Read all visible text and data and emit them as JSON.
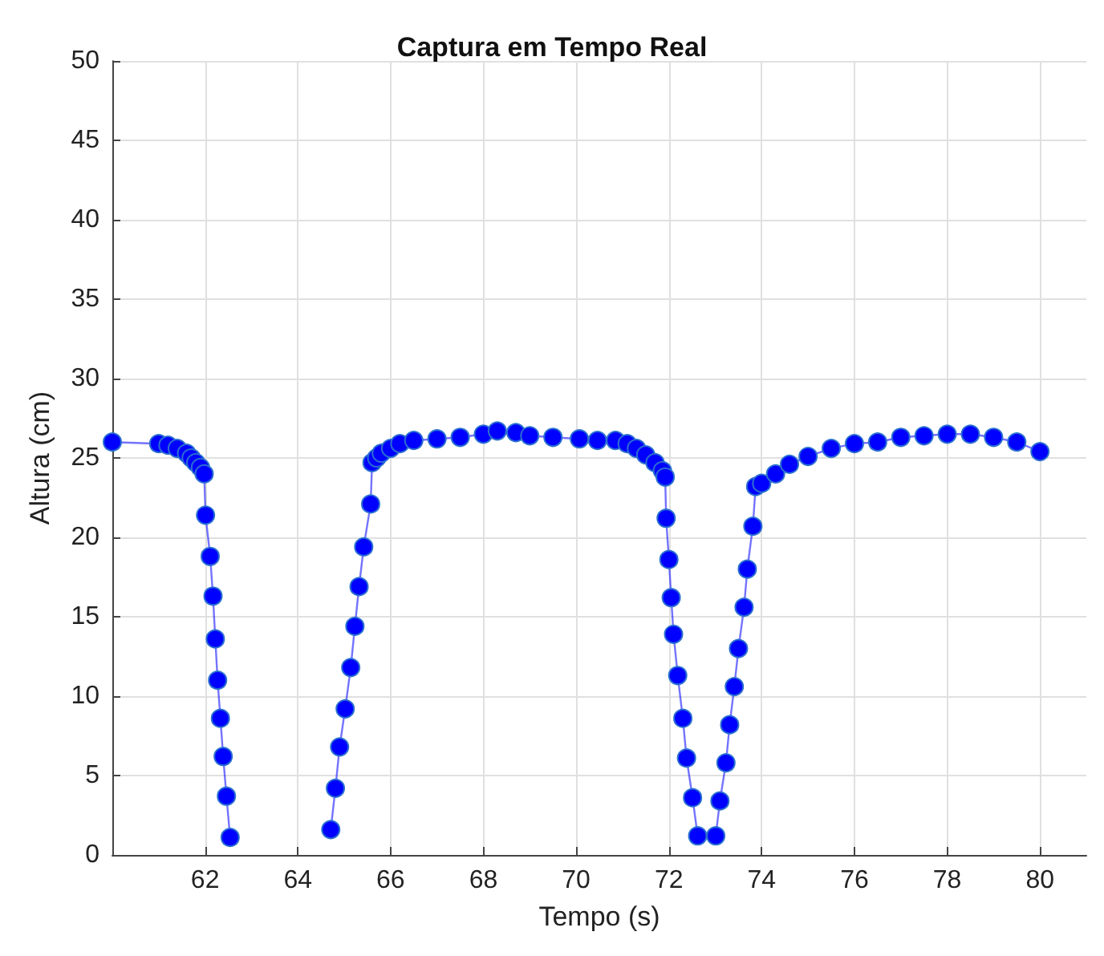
{
  "chart_data": {
    "type": "line",
    "title": "Captura em Tempo Real",
    "xlabel": "Tempo (s)",
    "ylabel": "Altura (cm)",
    "xlim": [
      60,
      81
    ],
    "xticks": [
      62,
      64,
      66,
      68,
      70,
      72,
      74,
      76,
      78,
      80
    ],
    "ylim": [
      0,
      50
    ],
    "yticks": [
      0,
      5,
      10,
      15,
      20,
      25,
      30,
      35,
      40,
      45,
      50
    ],
    "grid": true,
    "marker": "circle",
    "line_style": "solid",
    "x": [
      60,
      61.0,
      61.2,
      61.4,
      61.6,
      61.7,
      61.8,
      61.9,
      61.98,
      62.01,
      62.11,
      62.17,
      62.22,
      62.27,
      62.33,
      62.39,
      62.46,
      62.54,
      63.6,
      64.71,
      64.81,
      64.9,
      65.02,
      65.14,
      65.23,
      65.32,
      65.42,
      65.57,
      65.6,
      65.7,
      65.8,
      66.0,
      66.2,
      66.5,
      67.0,
      67.5,
      68.0,
      68.3,
      68.7,
      69.0,
      69.5,
      70.07,
      70.46,
      70.85,
      71.1,
      71.3,
      71.5,
      71.7,
      71.86,
      71.92,
      71.94,
      72.0,
      72.05,
      72.1,
      72.19,
      72.3,
      72.38,
      72.51,
      72.62,
      72.8,
      73.01,
      73.1,
      73.23,
      73.31,
      73.41,
      73.5,
      73.62,
      73.69,
      73.81,
      73.87,
      74.0,
      74.3,
      74.6,
      75.0,
      75.5,
      76.0,
      76.5,
      77.0,
      77.5,
      78.0,
      78.5,
      79.0,
      79.5,
      80.0
    ],
    "series": [
      {
        "color": "#0000ff",
        "values": [
          26,
          25.9,
          25.8,
          25.6,
          25.3,
          25.0,
          24.7,
          24.4,
          24.0,
          21.4,
          18.8,
          16.3,
          13.6,
          11.0,
          8.6,
          6.2,
          3.7,
          1.1,
          null,
          1.6,
          4.2,
          6.8,
          9.2,
          11.8,
          14.4,
          16.9,
          19.4,
          22.1,
          24.7,
          25.0,
          25.3,
          25.6,
          25.9,
          26.1,
          26.2,
          26.3,
          26.5,
          26.7,
          26.6,
          26.4,
          26.3,
          26.2,
          26.1,
          26.1,
          25.9,
          25.6,
          25.2,
          24.7,
          24.2,
          23.8,
          21.2,
          18.6,
          16.2,
          13.9,
          11.3,
          8.6,
          6.1,
          3.6,
          1.2,
          null,
          1.2,
          3.4,
          5.8,
          8.2,
          10.6,
          13.0,
          15.6,
          18.0,
          20.7,
          23.2,
          23.4,
          24.0,
          24.6,
          25.1,
          25.6,
          25.9,
          26.0,
          26.3,
          26.4,
          26.5,
          26.5,
          26.3,
          26.0,
          25.4
        ]
      }
    ]
  }
}
